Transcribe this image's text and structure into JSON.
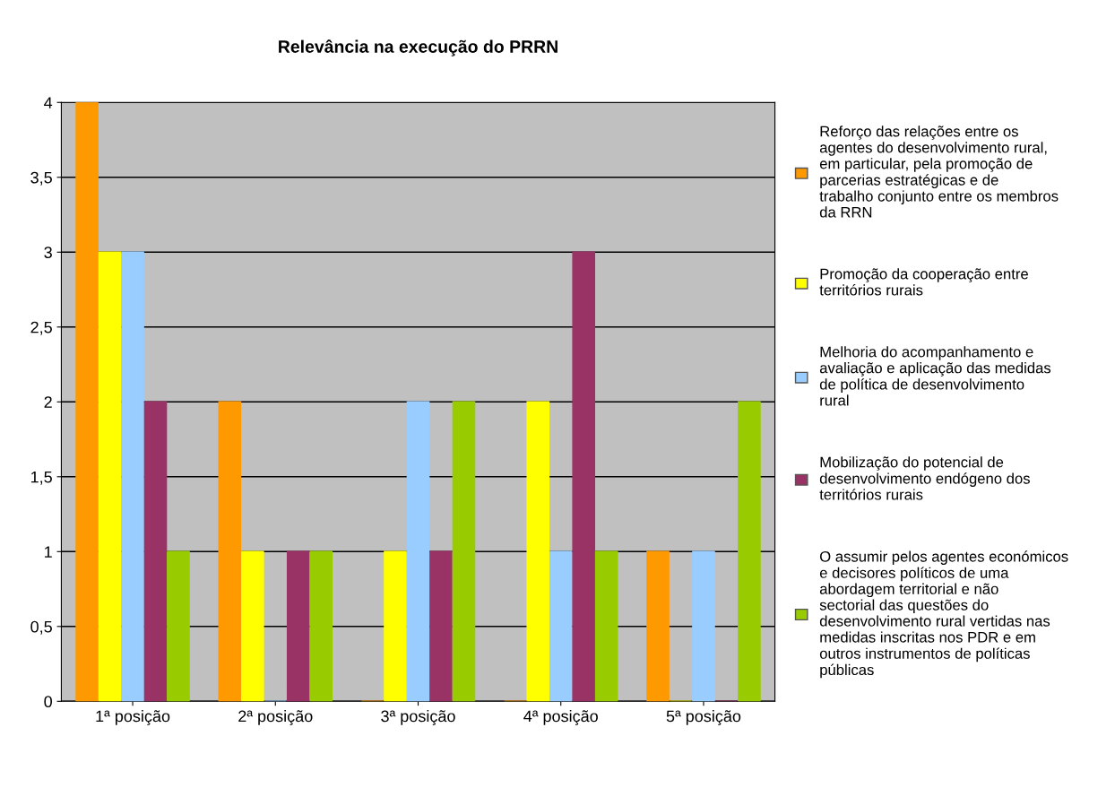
{
  "chart_data": {
    "type": "bar",
    "title": "Relevância na execução do PRRN",
    "categories": [
      "1ª posição",
      "2ª posição",
      "3ª posição",
      "4ª posição",
      "5ª posição"
    ],
    "series": [
      {
        "name": "Reforço das relações entre os agentes do desenvolvimento rural, em particular, pela promoção de parcerias estratégicas e de trabalho conjunto entre os membros da RRN",
        "color": "#ff9900",
        "values": [
          4,
          2,
          0,
          0,
          1
        ]
      },
      {
        "name": "Promoção da cooperação entre territórios rurais",
        "color": "#ffff00",
        "values": [
          3,
          1,
          1,
          2,
          0
        ]
      },
      {
        "name": "Melhoria do acompanhamento e avaliação e aplicação das medidas de política de desenvolvimento rural",
        "color": "#99ccff",
        "values": [
          3,
          0,
          2,
          1,
          1
        ]
      },
      {
        "name": "Mobilização do potencial de desenvolvimento endógeno dos territórios rurais",
        "color": "#993366",
        "values": [
          2,
          1,
          1,
          3,
          0
        ]
      },
      {
        "name": "O assumir pelos agentes económicos e decisores políticos de uma abordagem territorial e não sectorial das questões do desenvolvimento rural vertidas nas medidas inscritas nos PDR e em outros instrumentos de políticas públicas",
        "color": "#99cc00",
        "values": [
          1,
          1,
          2,
          1,
          2
        ]
      }
    ],
    "ylim": [
      0,
      4
    ],
    "yticks": [
      0,
      {
        "value": 0.5,
        "label": "0,5"
      },
      1,
      {
        "value": 1.5,
        "label": "1,5"
      },
      2,
      {
        "value": 2.5,
        "label": "2,5"
      },
      3,
      {
        "value": 3.5,
        "label": "3,5"
      },
      4
    ],
    "grid": "y",
    "legend": "right"
  }
}
